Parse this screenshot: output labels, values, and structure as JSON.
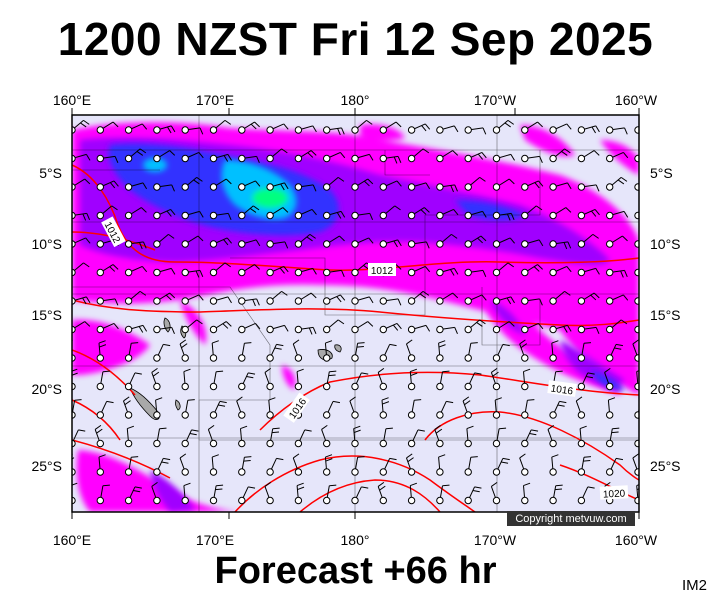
{
  "title": "1200 NZST Fri 12 Sep 2025",
  "footer": "Forecast +66 hr",
  "tag": "IM2",
  "copyright": "Copyright metvuw.com",
  "lon_labels_top": [
    "160°E",
    "170°E",
    "180°",
    "170°W",
    "160°W"
  ],
  "lon_labels_bottom": [
    "160°E",
    "170°E",
    "180°",
    "170°W",
    "160°W"
  ],
  "lat_labels": [
    "5°S",
    "10°S",
    "15°S",
    "20°S",
    "25°S"
  ],
  "isobar_labels": [
    "1012",
    "1012",
    "1016",
    "1016",
    "1020"
  ],
  "colors": {
    "background_field": "#e6e6fa",
    "isobar": "#ff0000",
    "rain_light": "#ff00ff",
    "rain_moderate": "#a000ff",
    "rain_heavy": "#3030ff",
    "rain_very_heavy": "#00c0ff",
    "rain_extreme": "#00ff80",
    "copyright_bg": "#333333"
  }
}
